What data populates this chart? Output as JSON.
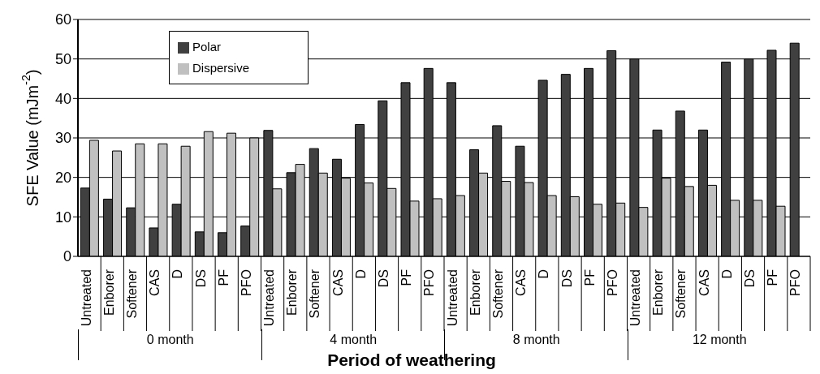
{
  "chart_data": {
    "type": "bar",
    "ylabel": "SFE Value (mJm$^{-2}$)",
    "xlabel": "Period of weathering",
    "categories": [
      "Untreated",
      "Enborer",
      "Softener",
      "CAS",
      "D",
      "DS",
      "PF",
      "PFO",
      "Untreated",
      "Enborer",
      "Softener",
      "CAS",
      "D",
      "DS",
      "PF",
      "PFO",
      "Untreated",
      "Enborer",
      "Softener",
      "CAS",
      "D",
      "DS",
      "PF",
      "PFO",
      "Untreated",
      "Enborer",
      "Softener",
      "CAS",
      "D",
      "DS",
      "PF",
      "PFO"
    ],
    "series": [
      {
        "name": "Polar",
        "color": "#404040",
        "values": [
          17.3,
          14.5,
          12.3,
          7.2,
          13.2,
          6.2,
          6,
          7.7,
          31.9,
          21.2,
          27.3,
          24.6,
          33.4,
          39.4,
          44,
          47.6,
          44,
          27,
          33.1,
          27.9,
          44.6,
          46.1,
          47.6,
          52.1,
          50,
          32,
          36.8,
          32,
          49.2,
          50,
          52.2,
          54
        ]
      },
      {
        "name": "Dispersive",
        "color": "#c0c0c0",
        "values": [
          29.4,
          26.7,
          28.5,
          28.5,
          27.9,
          31.6,
          31.2,
          30,
          17.1,
          23.3,
          21.1,
          19.8,
          18.6,
          17.2,
          14,
          14.6,
          15.4,
          21.1,
          19,
          18.7,
          15.4,
          15.1,
          13.2,
          13.5,
          12.4,
          19.8,
          17.7,
          18,
          14.2,
          14.2,
          12.7,
          null
        ]
      }
    ],
    "annotations": [
      "0 month",
      "4 month",
      "8 month",
      "12 month"
    ],
    "ylim": [
      0,
      60
    ],
    "yticks": [
      0,
      10,
      20,
      30,
      40,
      50,
      60
    ],
    "grid": "y",
    "legend": "top left"
  }
}
